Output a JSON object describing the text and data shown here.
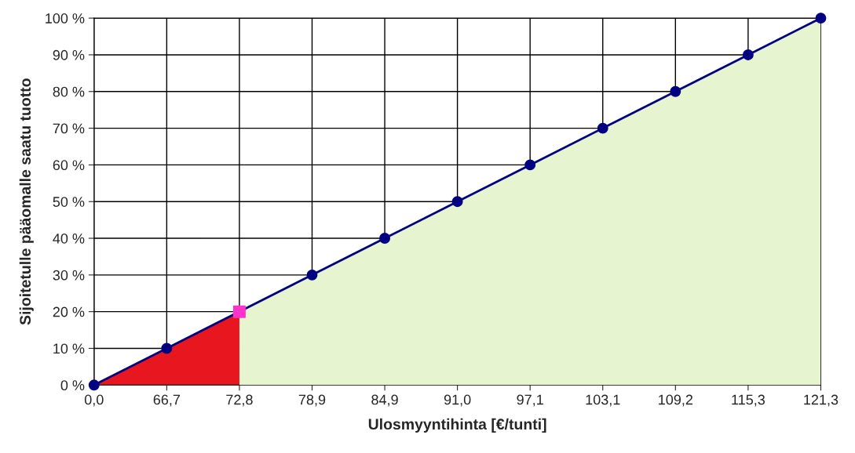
{
  "chart_data": {
    "type": "line",
    "xlabel": "Ulosmyyntihinta [€/tunti]",
    "ylabel": "Sijoitetulle pääomalle saatu tuotto",
    "categories": [
      "0,0",
      "66,7",
      "72,8",
      "78,9",
      "84,9",
      "91,0",
      "97,1",
      "103,1",
      "109,2",
      "115,3",
      "121,3"
    ],
    "series": [
      {
        "type": "area",
        "color": "#e8161e",
        "values": [
          0,
          10,
          20,
          null,
          null,
          null,
          null,
          null,
          null,
          null,
          null
        ]
      },
      {
        "type": "area",
        "color": "#e6f5cf",
        "values": [
          null,
          null,
          20,
          30,
          40,
          50,
          60,
          70,
          80,
          90,
          100
        ]
      },
      {
        "color": "#000080",
        "marker": "circle",
        "values": [
          0,
          10,
          null,
          30,
          40,
          50,
          60,
          70,
          80,
          90,
          100
        ]
      },
      {
        "type": "scatter",
        "color": "#ff33cc",
        "marker": "square",
        "values": [
          null,
          null,
          20,
          null,
          null,
          null,
          null,
          null,
          null,
          null,
          null
        ]
      }
    ],
    "ylim": [
      0,
      100
    ],
    "yticks": [
      {
        "value": 0,
        "label": "0 %"
      },
      {
        "value": 10,
        "label": "10 %"
      },
      {
        "value": 20,
        "label": "20 %"
      },
      {
        "value": 30,
        "label": "30 %"
      },
      {
        "value": 40,
        "label": "40 %"
      },
      {
        "value": 50,
        "label": "50 %"
      },
      {
        "value": 60,
        "label": "60 %"
      },
      {
        "value": 70,
        "label": "70 %"
      },
      {
        "value": 80,
        "label": "80 %"
      },
      {
        "value": 90,
        "label": "90 %"
      },
      {
        "value": 100,
        "label": "100 %"
      }
    ],
    "grid": true
  }
}
